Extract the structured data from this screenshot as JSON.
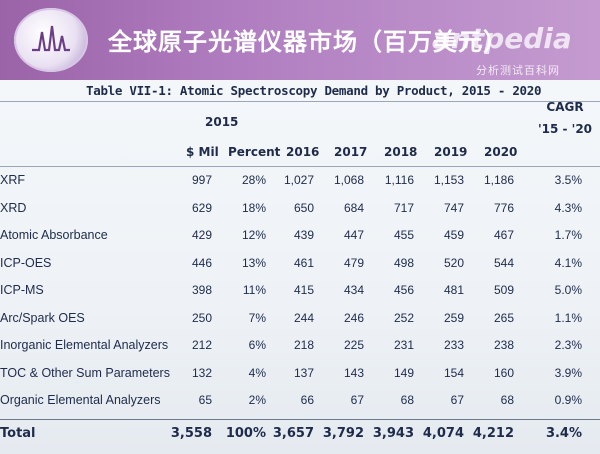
{
  "header": {
    "title": "全球原子光谱仪器市场（百万美元）",
    "watermark": "antpedia",
    "watermark_sub": "分析测试百科网"
  },
  "table": {
    "title": "Table VII-1: Atomic Spectroscopy Demand by Product, 2015 - 2020",
    "cagr_label": "CAGR",
    "cagr_range": "'15 - '20",
    "group_2015": "2015",
    "columns": [
      "$ Mil",
      "Percent",
      "2016",
      "2017",
      "2018",
      "2019",
      "2020"
    ],
    "rows": [
      {
        "label": "XRF",
        "mil": "997",
        "pct": "28%",
        "y2016": "1,027",
        "y2017": "1,068",
        "y2018": "1,116",
        "y2019": "1,153",
        "y2020": "1,186",
        "cagr": "3.5%"
      },
      {
        "label": "XRD",
        "mil": "629",
        "pct": "18%",
        "y2016": "650",
        "y2017": "684",
        "y2018": "717",
        "y2019": "747",
        "y2020": "776",
        "cagr": "4.3%"
      },
      {
        "label": "Atomic Absorbance",
        "mil": "429",
        "pct": "12%",
        "y2016": "439",
        "y2017": "447",
        "y2018": "455",
        "y2019": "459",
        "y2020": "467",
        "cagr": "1.7%"
      },
      {
        "label": "ICP-OES",
        "mil": "446",
        "pct": "13%",
        "y2016": "461",
        "y2017": "479",
        "y2018": "498",
        "y2019": "520",
        "y2020": "544",
        "cagr": "4.1%"
      },
      {
        "label": "ICP-MS",
        "mil": "398",
        "pct": "11%",
        "y2016": "415",
        "y2017": "434",
        "y2018": "456",
        "y2019": "481",
        "y2020": "509",
        "cagr": "5.0%"
      },
      {
        "label": "Arc/Spark OES",
        "mil": "250",
        "pct": "7%",
        "y2016": "244",
        "y2017": "246",
        "y2018": "252",
        "y2019": "259",
        "y2020": "265",
        "cagr": "1.1%"
      },
      {
        "label": "Inorganic Elemental Analyzers",
        "mil": "212",
        "pct": "6%",
        "y2016": "218",
        "y2017": "225",
        "y2018": "231",
        "y2019": "233",
        "y2020": "238",
        "cagr": "2.3%"
      },
      {
        "label": "TOC & Other Sum Parameters",
        "mil": "132",
        "pct": "4%",
        "y2016": "137",
        "y2017": "143",
        "y2018": "149",
        "y2019": "154",
        "y2020": "160",
        "cagr": "3.9%"
      },
      {
        "label": "Organic Elemental Analyzers",
        "mil": "65",
        "pct": "2%",
        "y2016": "66",
        "y2017": "67",
        "y2018": "68",
        "y2019": "67",
        "y2020": "68",
        "cagr": "0.9%"
      }
    ],
    "total": {
      "label": "Total",
      "mil": "3,558",
      "pct": "100%",
      "y2016": "3,657",
      "y2017": "3,792",
      "y2018": "3,943",
      "y2019": "4,074",
      "y2020": "4,212",
      "cagr": "3.4%"
    }
  }
}
